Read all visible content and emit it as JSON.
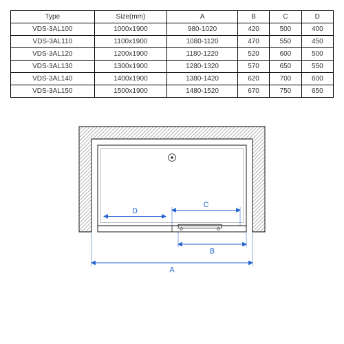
{
  "table": {
    "columns": [
      "Type",
      "Size(mm)",
      "A",
      "B",
      "C",
      "D"
    ],
    "rows": [
      [
        "VDS-3AL100",
        "1000x1900",
        "980-1020",
        "420",
        "500",
        "400"
      ],
      [
        "VDS-3AL110",
        "1100x1900",
        "1080-1120",
        "470",
        "550",
        "450"
      ],
      [
        "VDS-3AL120",
        "1200x1900",
        "1180-1220",
        "520",
        "600",
        "500"
      ],
      [
        "VDS-3AL130",
        "1300x1900",
        "1280-1320",
        "570",
        "650",
        "550"
      ],
      [
        "VDS-3AL140",
        "1400x1900",
        "1380-1420",
        "620",
        "700",
        "600"
      ],
      [
        "VDS-3AL150",
        "1500x1900",
        "1480-1520",
        "670",
        "750",
        "650"
      ]
    ],
    "border_color": "#000000",
    "text_color": "#333333",
    "font_size": 10
  },
  "diagram": {
    "labels": {
      "A": "A",
      "B": "B",
      "C": "C",
      "D": "D"
    },
    "dim_color": "#2060d0",
    "outline_color": "#000000",
    "hatch_color": "#888888",
    "inner_fill": "#ffffff"
  }
}
